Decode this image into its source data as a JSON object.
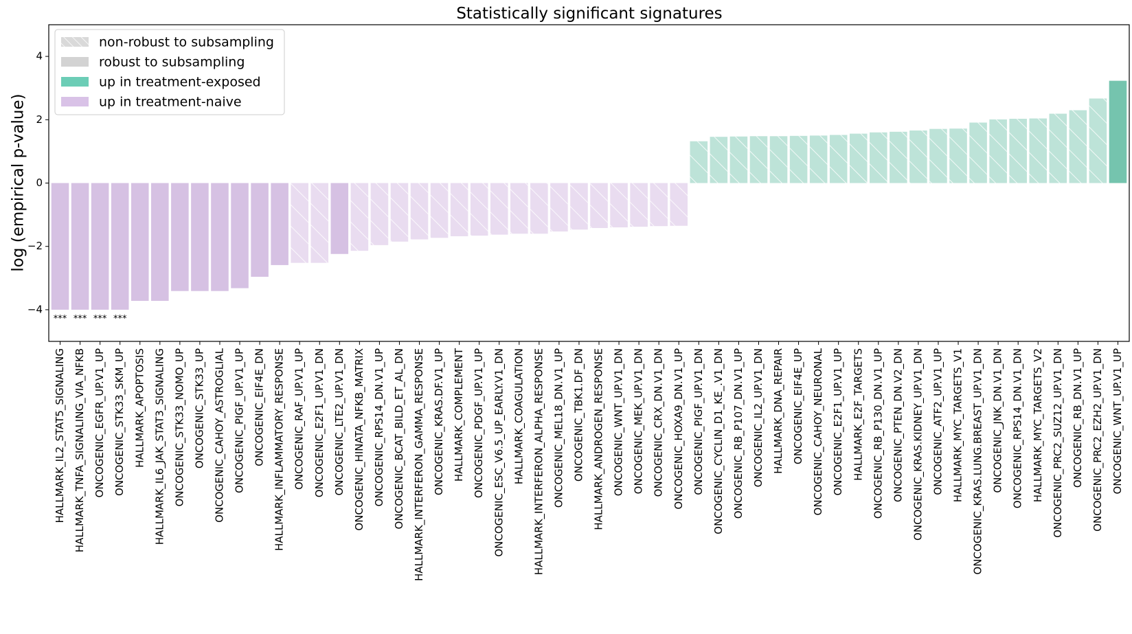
{
  "chart_data": {
    "type": "bar",
    "title": "Statistically significant signatures",
    "ylabel": "log (empirical p-value)",
    "xlabel": "",
    "ylim": [
      -5,
      5
    ],
    "yticks": [
      -4,
      -2,
      0,
      2,
      4
    ],
    "grid": false,
    "legend_position": "top-left",
    "colors": {
      "naive_robust": "#d6c1e3",
      "naive_nonrobust": "#e9dcf0",
      "exposed_robust": "#75c4ae",
      "exposed_nonrobust": "#bde3d8",
      "legend_nonrobust": "#d9d9d9",
      "legend_robust": "#d3d3d3",
      "legend_exposed": "#6ccdb6",
      "legend_naive": "#d9c2e7"
    },
    "legend": [
      {
        "label": "non-robust to subsampling",
        "key": "nonrobust"
      },
      {
        "label": "robust to subsampling",
        "key": "robust"
      },
      {
        "label": "up in treatment-exposed",
        "key": "exposed"
      },
      {
        "label": "up in treatment-naive",
        "key": "naive"
      }
    ],
    "bars": [
      {
        "name": "HALLMARK_IL2_STAT5_SIGNALING",
        "value": -4.0,
        "group": "naive",
        "robust": true,
        "annotation": "***"
      },
      {
        "name": "HALLMARK_TNFA_SIGNALING_VIA_NFKB",
        "value": -4.0,
        "group": "naive",
        "robust": true,
        "annotation": "***"
      },
      {
        "name": "ONCOGENIC_EGFR_UP.V1_UP",
        "value": -4.0,
        "group": "naive",
        "robust": true,
        "annotation": "***"
      },
      {
        "name": "ONCOGENIC_STK33_SKM_UP",
        "value": -4.0,
        "group": "naive",
        "robust": true,
        "annotation": "***"
      },
      {
        "name": "HALLMARK_APOPTOSIS",
        "value": -3.72,
        "group": "naive",
        "robust": true
      },
      {
        "name": "HALLMARK_IL6_JAK_STAT3_SIGNALING",
        "value": -3.72,
        "group": "naive",
        "robust": true
      },
      {
        "name": "ONCOGENIC_STK33_NOMO_UP",
        "value": -3.41,
        "group": "naive",
        "robust": true
      },
      {
        "name": "ONCOGENIC_STK33_UP",
        "value": -3.41,
        "group": "naive",
        "robust": true
      },
      {
        "name": "ONCOGENIC_CAHOY_ASTROGLIAL",
        "value": -3.41,
        "group": "naive",
        "robust": true
      },
      {
        "name": "ONCOGENIC_PIGF_UP.V1_UP",
        "value": -3.32,
        "group": "naive",
        "robust": true
      },
      {
        "name": "ONCOGENIC_EIF4E_DN",
        "value": -2.96,
        "group": "naive",
        "robust": true
      },
      {
        "name": "HALLMARK_INFLAMMATORY_RESPONSE",
        "value": -2.59,
        "group": "naive",
        "robust": true
      },
      {
        "name": "ONCOGENIC_RAF_UP.V1_UP",
        "value": -2.52,
        "group": "naive",
        "robust": false
      },
      {
        "name": "ONCOGENIC_E2F1_UP.V1_DN",
        "value": -2.52,
        "group": "naive",
        "robust": false
      },
      {
        "name": "ONCOGENIC_LTE2_UP.V1_DN",
        "value": -2.24,
        "group": "naive",
        "robust": true
      },
      {
        "name": "ONCOGENIC_HINATA_NFKB_MATRIX",
        "value": -2.14,
        "group": "naive",
        "robust": false
      },
      {
        "name": "ONCOGENIC_RPS14_DN.V1_UP",
        "value": -1.96,
        "group": "naive",
        "robust": false
      },
      {
        "name": "ONCOGENIC_BCAT_BILD_ET_AL_DN",
        "value": -1.85,
        "group": "naive",
        "robust": false
      },
      {
        "name": "HALLMARK_INTERFERON_GAMMA_RESPONSE",
        "value": -1.78,
        "group": "naive",
        "robust": false
      },
      {
        "name": "ONCOGENIC_KRAS.DF.V1_UP",
        "value": -1.73,
        "group": "naive",
        "robust": false
      },
      {
        "name": "HALLMARK_COMPLEMENT",
        "value": -1.68,
        "group": "naive",
        "robust": false
      },
      {
        "name": "ONCOGENIC_PDGF_UP.V1_UP",
        "value": -1.66,
        "group": "naive",
        "robust": false
      },
      {
        "name": "ONCOGENIC_ESC_V6.5_UP_EARLY.V1_DN",
        "value": -1.63,
        "group": "naive",
        "robust": false
      },
      {
        "name": "HALLMARK_COAGULATION",
        "value": -1.6,
        "group": "naive",
        "robust": false
      },
      {
        "name": "HALLMARK_INTERFERON_ALPHA_RESPONSE",
        "value": -1.6,
        "group": "naive",
        "robust": false
      },
      {
        "name": "ONCOGENIC_MEL18_DN.V1_UP",
        "value": -1.53,
        "group": "naive",
        "robust": false
      },
      {
        "name": "ONCOGENIC_TBK1.DF_DN",
        "value": -1.47,
        "group": "naive",
        "robust": false
      },
      {
        "name": "HALLMARK_ANDROGEN_RESPONSE",
        "value": -1.42,
        "group": "naive",
        "robust": false
      },
      {
        "name": "ONCOGENIC_WNT_UP.V1_DN",
        "value": -1.4,
        "group": "naive",
        "robust": false
      },
      {
        "name": "ONCOGENIC_MEK_UP.V1_DN",
        "value": -1.38,
        "group": "naive",
        "robust": false
      },
      {
        "name": "ONCOGENIC_CRX_DN.V1_DN",
        "value": -1.36,
        "group": "naive",
        "robust": false
      },
      {
        "name": "ONCOGENIC_HOXA9_DN.V1_UP",
        "value": -1.35,
        "group": "naive",
        "robust": false
      },
      {
        "name": "ONCOGENIC_PIGF_UP.V1_DN",
        "value": 1.32,
        "group": "exposed",
        "robust": false
      },
      {
        "name": "ONCOGENIC_CYCLIN_D1_KE_.V1_DN",
        "value": 1.46,
        "group": "exposed",
        "robust": false
      },
      {
        "name": "ONCOGENIC_RB_P107_DN.V1_UP",
        "value": 1.47,
        "group": "exposed",
        "robust": false
      },
      {
        "name": "ONCOGENIC_IL2_UP.V1_DN",
        "value": 1.48,
        "group": "exposed",
        "robust": false
      },
      {
        "name": "HALLMARK_DNA_REPAIR",
        "value": 1.48,
        "group": "exposed",
        "robust": false
      },
      {
        "name": "ONCOGENIC_EIF4E_UP",
        "value": 1.49,
        "group": "exposed",
        "robust": false
      },
      {
        "name": "ONCOGENIC_CAHOY_NEURONAL",
        "value": 1.5,
        "group": "exposed",
        "robust": false
      },
      {
        "name": "ONCOGENIC_E2F1_UP.V1_UP",
        "value": 1.52,
        "group": "exposed",
        "robust": false
      },
      {
        "name": "HALLMARK_E2F_TARGETS",
        "value": 1.56,
        "group": "exposed",
        "robust": false
      },
      {
        "name": "ONCOGENIC_RB_P130_DN.V1_UP",
        "value": 1.6,
        "group": "exposed",
        "robust": false
      },
      {
        "name": "ONCOGENIC_PTEN_DN.V2_DN",
        "value": 1.62,
        "group": "exposed",
        "robust": false
      },
      {
        "name": "ONCOGENIC_KRAS.KIDNEY_UP.V1_DN",
        "value": 1.66,
        "group": "exposed",
        "robust": false
      },
      {
        "name": "ONCOGENIC_ATF2_UP.V1_UP",
        "value": 1.71,
        "group": "exposed",
        "robust": false
      },
      {
        "name": "HALLMARK_MYC_TARGETS_V1",
        "value": 1.72,
        "group": "exposed",
        "robust": false
      },
      {
        "name": "ONCOGENIC_KRAS.LUNG.BREAST_UP.V1_DN",
        "value": 1.91,
        "group": "exposed",
        "robust": false
      },
      {
        "name": "ONCOGENIC_JNK_DN.V1_DN",
        "value": 2.01,
        "group": "exposed",
        "robust": false
      },
      {
        "name": "ONCOGENIC_RPS14_DN.V1_DN",
        "value": 2.03,
        "group": "exposed",
        "robust": false
      },
      {
        "name": "HALLMARK_MYC_TARGETS_V2",
        "value": 2.04,
        "group": "exposed",
        "robust": false
      },
      {
        "name": "ONCOGENIC_PRC2_SUZ12_UP.V1_DN",
        "value": 2.19,
        "group": "exposed",
        "robust": false
      },
      {
        "name": "ONCOGENIC_RB_DN.V1_UP",
        "value": 2.3,
        "group": "exposed",
        "robust": false
      },
      {
        "name": "ONCOGENIC_PRC2_EZH2_UP.V1_DN",
        "value": 2.67,
        "group": "exposed",
        "robust": false
      },
      {
        "name": "ONCOGENIC_WNT_UP.V1_UP",
        "value": 3.23,
        "group": "exposed",
        "robust": true
      }
    ]
  }
}
